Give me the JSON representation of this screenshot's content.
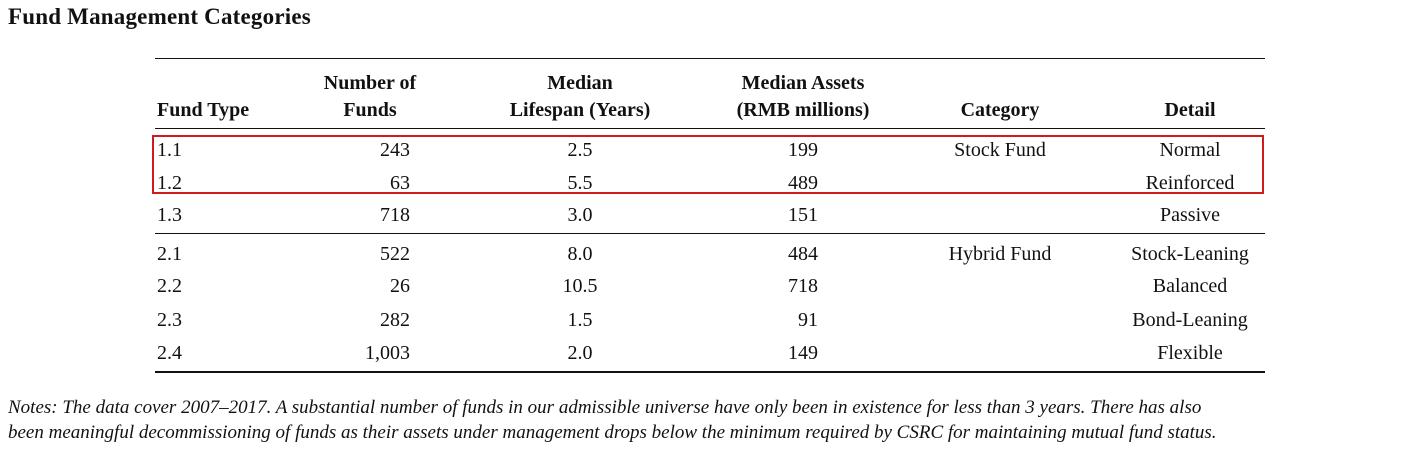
{
  "title": "Fund Management Categories",
  "headers": {
    "fund_type": "Fund Type",
    "num_funds_1": "Number of",
    "num_funds_2": "Funds",
    "lifespan_1": "Median",
    "lifespan_2": "Lifespan (Years)",
    "assets_1": "Median Assets",
    "assets_2": "(RMB millions)",
    "category": "Category",
    "detail": "Detail"
  },
  "rows": [
    {
      "fund_type": "1.1",
      "num_funds": "243",
      "lifespan": "2.5",
      "assets": "199",
      "category": "Stock Fund",
      "detail": "Normal"
    },
    {
      "fund_type": "1.2",
      "num_funds": "63",
      "lifespan": "5.5",
      "assets": "489",
      "category": "",
      "detail": "Reinforced"
    },
    {
      "fund_type": "1.3",
      "num_funds": "718",
      "lifespan": "3.0",
      "assets": "151",
      "category": "",
      "detail": "Passive"
    },
    {
      "fund_type": "2.1",
      "num_funds": "522",
      "lifespan": "8.0",
      "assets": "484",
      "category": "Hybrid Fund",
      "detail": "Stock-Leaning"
    },
    {
      "fund_type": "2.2",
      "num_funds": "26",
      "lifespan": "10.5",
      "assets": "718",
      "category": "",
      "detail": "Balanced"
    },
    {
      "fund_type": "2.3",
      "num_funds": "282",
      "lifespan": "1.5",
      "assets": "91",
      "category": "",
      "detail": "Bond-Leaning"
    },
    {
      "fund_type": "2.4",
      "num_funds": "1,003",
      "lifespan": "2.0",
      "assets": "149",
      "category": "",
      "detail": "Flexible"
    }
  ],
  "highlight_color": "#d11a1a",
  "notes_line1": "Notes: The data cover 2007–2017. A substantial number of funds in our admissible universe have only been in existence for less than 3 years. There has also",
  "notes_line2": "been meaningful decommissioning of funds as their assets under management drops below the minimum required by CSRC for maintaining mutual fund status."
}
